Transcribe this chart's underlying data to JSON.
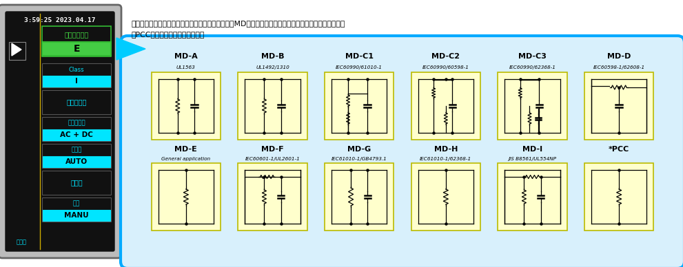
{
  "bg_color": "#ffffff",
  "cyan_color": "#00e5ff",
  "green_bg": "#4db84d",
  "time_text": "3:59:25 2023.04.17",
  "network_label": "ネットワーク",
  "network_value": "E",
  "menu_items": [
    {
      "label": "Class",
      "value": "I"
    },
    {
      "label": "漏れモード",
      "value": null
    },
    {
      "label": "電流タイプ",
      "value": "AC + DC"
    },
    {
      "label": "レンジ",
      "value": "AUTO"
    },
    {
      "label": "許容値",
      "value": null
    },
    {
      "label": "測定",
      "value": "MANU"
    }
  ],
  "top_row": [
    {
      "name": "MD-A",
      "std": "UL1563"
    },
    {
      "name": "MD-B",
      "std": "UL1492/1310"
    },
    {
      "name": "MD-C1",
      "std": "IEC60990/61010-1"
    },
    {
      "name": "MD-C2",
      "std": "IEC60990/60598-1"
    },
    {
      "name": "MD-C3",
      "std": "IEC60990/62368-1"
    },
    {
      "name": "MD-D",
      "std": "IEC60598-1/62608-1"
    }
  ],
  "bot_row": [
    {
      "name": "MD-E",
      "std": "General application"
    },
    {
      "name": "MD-F",
      "std": "IEC60601-1/UL2601-1"
    },
    {
      "name": "MD-G",
      "std": "IEC61010-1/GB4793.1"
    },
    {
      "name": "MD-H",
      "std": "IEC61010-1/62368-1"
    },
    {
      "name": "MD-I",
      "std": "JIS B8561/UL554NP"
    },
    {
      "name": "*PCC",
      "std": ""
    }
  ],
  "note1": "ノート：上記にリストされた標準番号は例のです。MDはすべての適用可能な規格と共に使用できます。",
  "note2": "＊PCCはメーターモード専用です"
}
